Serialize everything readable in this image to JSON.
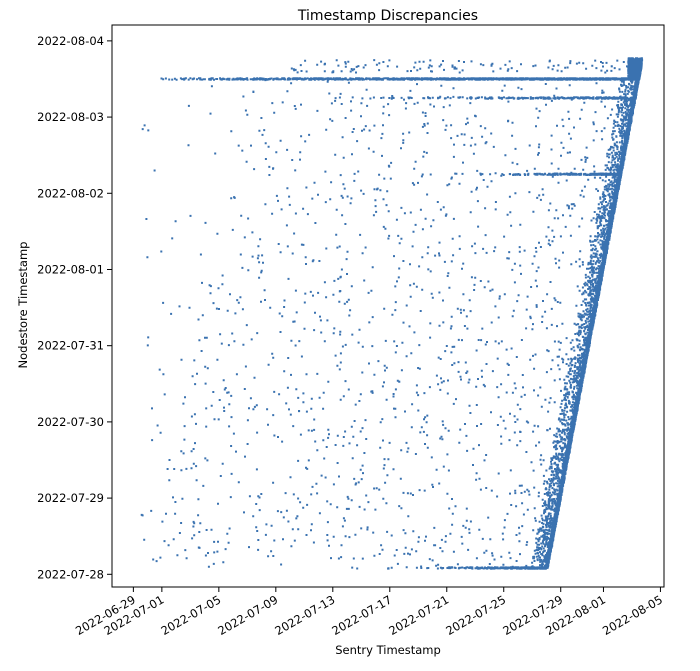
{
  "chart_data": {
    "type": "scatter",
    "title": "Timestamp Discrepancies",
    "xlabel": "Sentry Timestamp",
    "ylabel": "Nodestore Timestamp",
    "marker_color": "#3a72b0",
    "grid": false,
    "legend": "none",
    "xlim": [
      "2022-06-27T12:00",
      "2022-08-05T06:00"
    ],
    "ylim": [
      "2022-07-27T20:00",
      "2022-08-04T05:00"
    ],
    "x_ticks": [
      "2022-06-29",
      "2022-07-01",
      "2022-07-05",
      "2022-07-09",
      "2022-07-13",
      "2022-07-17",
      "2022-07-21",
      "2022-07-25",
      "2022-07-29",
      "2022-08-01",
      "2022-08-05"
    ],
    "y_ticks": [
      "2022-07-28",
      "2022-07-29",
      "2022-07-30",
      "2022-07-31",
      "2022-08-01",
      "2022-08-02",
      "2022-08-03",
      "2022-08-04"
    ],
    "series": [
      {
        "sample_points": [
          [
            "2022-07-28T00:00",
            "2022-07-28T02:00"
          ],
          [
            "2022-07-28T00:00",
            "2022-07-29T00:00"
          ],
          [
            "2022-07-29T00:00",
            "2022-07-30T00:00"
          ],
          [
            "2022-07-30T00:00",
            "2022-07-31T00:00"
          ],
          [
            "2022-07-31T00:00",
            "2022-08-01T00:00"
          ],
          [
            "2022-08-01T00:00",
            "2022-08-02T00:00"
          ],
          [
            "2022-08-02T00:00",
            "2022-08-03T00:00"
          ],
          [
            "2022-08-03T00:00",
            "2022-08-03T12:00"
          ],
          [
            "2022-08-03T12:00",
            "2022-08-03T18:00"
          ],
          [
            "2022-06-29T12:00",
            "2022-07-29T00:00"
          ],
          [
            "2022-06-30T00:00",
            "2022-07-28T02:00"
          ],
          [
            "2022-07-01T12:00",
            "2022-07-29T18:00"
          ],
          [
            "2022-07-03T00:00",
            "2022-08-01T00:00"
          ],
          [
            "2022-07-05T00:00",
            "2022-08-03T07:00"
          ],
          [
            "2022-07-05T12:00",
            "2022-08-02T00:00"
          ],
          [
            "2022-07-07T00:00",
            "2022-07-30T00:00"
          ],
          [
            "2022-07-09T00:00",
            "2022-08-03T12:00"
          ],
          [
            "2022-07-11T00:00",
            "2022-07-31T00:00"
          ],
          [
            "2022-07-13T00:00",
            "2022-08-01T00:00"
          ],
          [
            "2022-07-15T00:00",
            "2022-07-29T00:00"
          ],
          [
            "2022-07-17T00:00",
            "2022-08-02T00:00"
          ],
          [
            "2022-07-19T00:00",
            "2022-07-30T12:00"
          ],
          [
            "2022-07-21T00:00",
            "2022-08-03T06:00"
          ],
          [
            "2022-07-23T00:00",
            "2022-07-31T12:00"
          ],
          [
            "2022-07-25T00:00",
            "2022-08-02T12:00"
          ],
          [
            "2022-07-27T00:00",
            "2022-07-29T00:00"
          ]
        ]
      }
    ]
  }
}
